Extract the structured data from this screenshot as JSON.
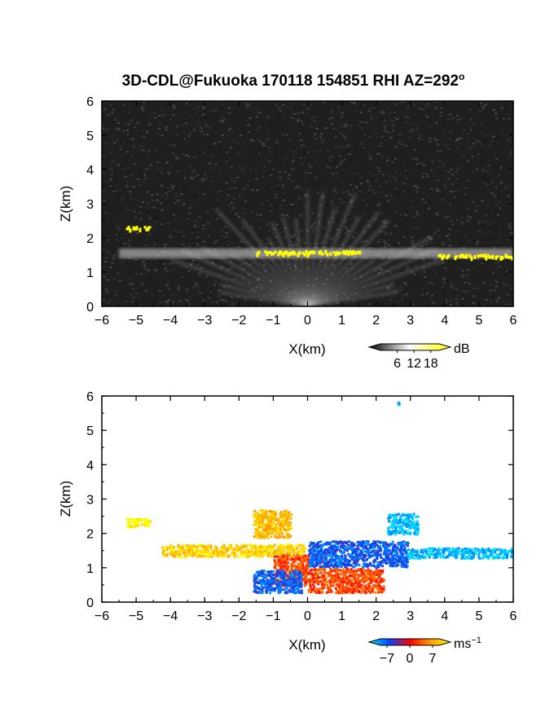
{
  "chart_data": [
    {
      "type": "heatmap",
      "title": "3D-CDL@Fukuoka 170118 154851 RHI AZ=292",
      "title_superscript": "o",
      "xlabel": "X(km)",
      "ylabel": "Z(km)",
      "xlim": [
        -6,
        6
      ],
      "ylim": [
        0,
        6
      ],
      "x_ticks": [
        "-6",
        "-5",
        "-4",
        "-3",
        "-2",
        "-1",
        "0",
        "1",
        "2",
        "3",
        "4",
        "5",
        "6"
      ],
      "y_ticks": [
        "0",
        "1",
        "2",
        "3",
        "4",
        "5",
        "6"
      ],
      "colorbar": {
        "unit": "dB",
        "ticks": [
          "6",
          "12",
          "18"
        ],
        "range": [
          0,
          21
        ],
        "colors": [
          "#000000",
          "#ffffff",
          "#ffff00"
        ]
      },
      "features": [
        {
          "x": [
            -5.5,
            6
          ],
          "z": 1.55,
          "intensity": "high"
        },
        {
          "x": [
            -5.3,
            -4.6
          ],
          "z": 2.3,
          "intensity": "saturated"
        },
        {
          "x": [
            -1.5,
            1.5
          ],
          "z": 1.58,
          "intensity": "saturated"
        },
        {
          "x": [
            3.8,
            6
          ],
          "z": 1.48,
          "intensity": "saturated"
        }
      ],
      "grid": false,
      "colorbar_placement": "bottom-right"
    },
    {
      "type": "heatmap",
      "xlabel": "X(km)",
      "ylabel": "Z(km)",
      "xlim": [
        -6,
        6
      ],
      "ylim": [
        0,
        6
      ],
      "x_ticks": [
        "-6",
        "-5",
        "-4",
        "-3",
        "-2",
        "-1",
        "0",
        "1",
        "2",
        "3",
        "4",
        "5",
        "6"
      ],
      "y_ticks": [
        "0",
        "1",
        "2",
        "3",
        "4",
        "5",
        "6"
      ],
      "colorbar": {
        "unit": "ms",
        "unit_superscript": "−1",
        "ticks": [
          "−7",
          "0",
          "7"
        ],
        "range": [
          -9,
          9
        ],
        "colors": [
          "#00e5ff",
          "#0044ff",
          "#ff0000",
          "#ff9900",
          "#ffff00"
        ]
      },
      "regions": [
        {
          "x": [
            -5.3,
            -4.6
          ],
          "z": [
            2.2,
            2.45
          ],
          "velocity": 9
        },
        {
          "x": [
            -4.3,
            -0.1
          ],
          "z": [
            1.35,
            1.7
          ],
          "velocity": 7
        },
        {
          "x": [
            -1.0,
            0.0
          ],
          "z": [
            0.5,
            1.4
          ],
          "velocity": 2
        },
        {
          "x": [
            0.0,
            2.9
          ],
          "z": [
            1.05,
            1.8
          ],
          "velocity": -5
        },
        {
          "x": [
            2.9,
            6.0
          ],
          "z": [
            1.3,
            1.6
          ],
          "velocity": -8
        },
        {
          "x": [
            0.0,
            2.2
          ],
          "z": [
            0.3,
            1.0
          ],
          "velocity": 2
        },
        {
          "x": [
            -1.6,
            -0.2
          ],
          "z": [
            0.3,
            0.95
          ],
          "velocity": -5
        },
        {
          "x": [
            -1.6,
            -0.5
          ],
          "z": [
            1.9,
            2.7
          ],
          "velocity": 6
        },
        {
          "x": [
            2.3,
            3.2
          ],
          "z": [
            2.0,
            2.6
          ],
          "velocity": -8
        },
        {
          "x": [
            2.6,
            2.65
          ],
          "z": [
            5.78,
            5.85
          ],
          "velocity": -8
        }
      ],
      "grid": false,
      "colorbar_placement": "bottom-right"
    }
  ]
}
